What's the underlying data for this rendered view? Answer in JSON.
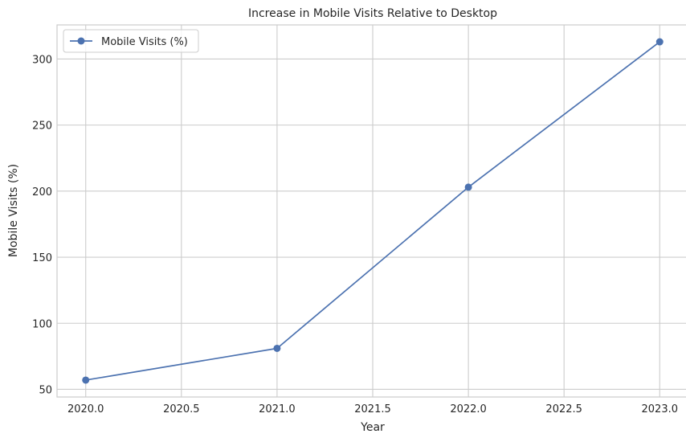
{
  "chart_data": {
    "type": "line",
    "title": "Increase in Mobile Visits Relative to Desktop",
    "xlabel": "Year",
    "ylabel": "Mobile Visits (%)",
    "x": [
      2020,
      2021,
      2022,
      2023
    ],
    "series": [
      {
        "name": "Mobile Visits (%)",
        "values": [
          57,
          81,
          203,
          313
        ],
        "color": "#4c72b0",
        "marker": "circle"
      }
    ],
    "xlim": [
      1979.85,
      2023.15
    ],
    "ylim": [
      44.2,
      325.8
    ],
    "xticks": [
      2020.0,
      2020.5,
      2021.0,
      2021.5,
      2022.0,
      2022.5,
      2023.0
    ],
    "xtick_labels": [
      "2020.0",
      "2020.5",
      "2021.0",
      "2021.5",
      "2022.0",
      "2022.5",
      "2023.0"
    ],
    "yticks": [
      50,
      100,
      150,
      200,
      250,
      300
    ],
    "ytick_labels": [
      "50",
      "100",
      "150",
      "200",
      "250",
      "300"
    ],
    "grid": true,
    "legend_position": "top-left"
  }
}
